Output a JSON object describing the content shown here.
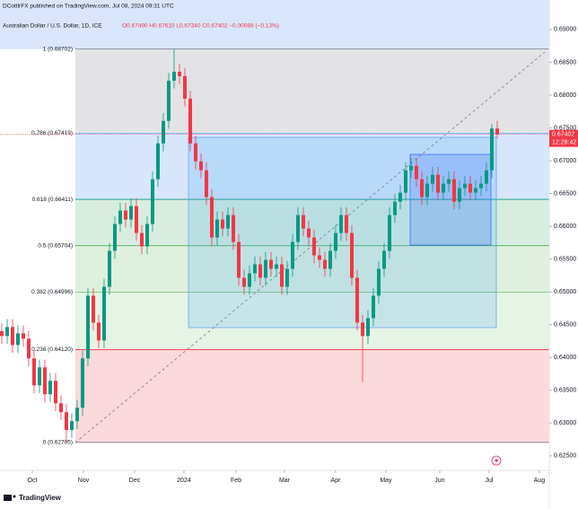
{
  "chart_data": {
    "type": "candlestick",
    "header": {
      "published": "DCottlrFX published on TradingView.com, Jul 08, 2024 09:31 UTC",
      "symbol": "Australian Dollar / U.S. Dollar, 1D, ICE",
      "ohlc": "O0.67490 H0.67610 L0.67340 C0.67402 −0.00088 (−0.13%)"
    },
    "footer": "TradingView",
    "countdown": "12:28:42",
    "up_color": "#089981",
    "down_color": "#f23645",
    "ylim": [
      0.6195,
      0.6945
    ],
    "xlim": [
      -0.33,
      101.67
    ],
    "yticks": [
      {
        "value": 0.625,
        "label": "0.62500"
      },
      {
        "value": 0.63,
        "label": "0.63000"
      },
      {
        "value": 0.635,
        "label": "0.63500"
      },
      {
        "value": 0.64,
        "label": "0.64000"
      },
      {
        "value": 0.645,
        "label": "0.64500"
      },
      {
        "value": 0.65,
        "label": "0.65000"
      },
      {
        "value": 0.655,
        "label": "0.65500"
      },
      {
        "value": 0.66,
        "label": "0.66000"
      },
      {
        "value": 0.665,
        "label": "0.66500"
      },
      {
        "value": 0.67,
        "label": "0.67000"
      },
      {
        "value": 0.675,
        "label": "0.67500"
      },
      {
        "value": 0.68,
        "label": "0.68000"
      },
      {
        "value": 0.685,
        "label": "0.68500"
      },
      {
        "value": 0.69,
        "label": "0.69000"
      }
    ],
    "xticks": [
      {
        "value": 5.67,
        "label": "Oct"
      },
      {
        "value": 15.17,
        "label": "Nov"
      },
      {
        "value": 24.67,
        "label": "Dec"
      },
      {
        "value": 33.83,
        "label": "2024"
      },
      {
        "value": 43.5,
        "label": "Feb"
      },
      {
        "value": 52.5,
        "label": "Mar"
      },
      {
        "value": 62,
        "label": "Apr"
      },
      {
        "value": 71.33,
        "label": "May"
      },
      {
        "value": 81.33,
        "label": "Jun"
      },
      {
        "value": 90.5,
        "label": "Jul"
      },
      {
        "value": 99.83,
        "label": "Aug"
      }
    ],
    "top_band_color": "#d9e6fc",
    "fib_levels": [
      {
        "label": "1 (0.68702)",
        "price": 0.68702,
        "color": "#787b86",
        "band_color": "#e3e3e5"
      },
      {
        "label": "0.786 (0.67419)",
        "price": 0.67419,
        "color": "#64b5f6",
        "band_color": "#d7e6fb"
      },
      {
        "label": "0.618 (0.66411)",
        "price": 0.66411,
        "color": "#089981",
        "band_color": "#d8ede0"
      },
      {
        "label": "0.5 (0.65704)",
        "price": 0.65704,
        "color": "#4caf50",
        "band_color": "#dff0df"
      },
      {
        "label": "0.382 (0.64996)",
        "price": 0.64996,
        "color": "#81c784",
        "band_color": "#e6f4e6"
      },
      {
        "label": "0.236 (0.64120)",
        "price": 0.6412,
        "color": "#f23645",
        "band_color": "#fbd9dc"
      },
      {
        "label": "0 (0.62705)",
        "price": 0.62705,
        "color": "#787b86"
      }
    ],
    "open": [
      0.644,
      0.64327,
      0.64464,
      0.6419,
      0.64368,
      0.64286,
      0.63986,
      0.63576,
      0.63849,
      0.63439,
      0.63644,
      0.63302,
      0.63166,
      0.62893,
      0.63029,
      0.63234,
      0.63986,
      0.64942,
      0.64532,
      0.64259,
      0.65078,
      0.65625,
      0.66035,
      0.6624,
      0.66103,
      0.66308,
      0.65898,
      0.65693,
      0.66035,
      0.66718,
      0.67264,
      0.67606,
      0.6822,
      0.68357,
      0.68289,
      0.67947,
      0.67264,
      0.66991,
      0.66854,
      0.66445,
      0.6583,
      0.66103,
      0.65966,
      0.66171,
      0.65761,
      0.65215,
      0.65078,
      0.65283,
      0.6542,
      0.65215,
      0.65488,
      0.65352,
      0.6542,
      0.65078,
      0.65352,
      0.65761,
      0.66171,
      0.65966,
      0.6583,
      0.65557,
      0.65488,
      0.65352,
      0.65625,
      0.65898,
      0.66171,
      0.65898,
      0.65215,
      0.64532,
      0.64327,
      0.646,
      0.64942,
      0.65352,
      0.65625,
      0.66171,
      0.66376,
      0.66513,
      0.66854,
      0.66923,
      0.66718,
      0.66445,
      0.66649,
      0.66786,
      0.66513,
      0.66649,
      0.66718,
      0.66376,
      0.66581,
      0.66649,
      0.66513,
      0.66581,
      0.66649,
      0.66854,
      0.6749
    ],
    "high": [
      0.6452,
      0.64584,
      0.64584,
      0.64488,
      0.64488,
      0.64406,
      0.64106,
      0.63969,
      0.63969,
      0.63764,
      0.63764,
      0.63422,
      0.63286,
      0.63149,
      0.63354,
      0.64106,
      0.65062,
      0.65062,
      0.64652,
      0.65198,
      0.65745,
      0.66155,
      0.6636,
      0.6636,
      0.66428,
      0.66428,
      0.66018,
      0.66155,
      0.66838,
      0.67384,
      0.67726,
      0.6834,
      0.68702,
      0.68477,
      0.68409,
      0.68067,
      0.67384,
      0.67111,
      0.66974,
      0.66565,
      0.66223,
      0.66223,
      0.66291,
      0.66291,
      0.65881,
      0.65335,
      0.65403,
      0.6554,
      0.6554,
      0.65608,
      0.65608,
      0.6554,
      0.6554,
      0.65472,
      0.65881,
      0.66291,
      0.66291,
      0.66086,
      0.6595,
      0.65677,
      0.65608,
      0.65745,
      0.66018,
      0.66291,
      0.66291,
      0.66018,
      0.65335,
      0.64652,
      0.6472,
      0.65062,
      0.65472,
      0.65745,
      0.66291,
      0.66496,
      0.66633,
      0.66974,
      0.67043,
      0.67043,
      0.66838,
      0.66769,
      0.66906,
      0.66906,
      0.66769,
      0.66838,
      0.66838,
      0.66701,
      0.66769,
      0.66769,
      0.66701,
      0.66769,
      0.66974,
      0.6756,
      0.6761
    ],
    "low": [
      0.64207,
      0.64207,
      0.6407,
      0.6407,
      0.64166,
      0.63866,
      0.63456,
      0.63456,
      0.63319,
      0.63319,
      0.63182,
      0.63046,
      0.62705,
      0.62773,
      0.62909,
      0.63114,
      0.63866,
      0.64412,
      0.64139,
      0.64139,
      0.64958,
      0.65505,
      0.65915,
      0.65983,
      0.65983,
      0.65778,
      0.65573,
      0.65573,
      0.65915,
      0.66598,
      0.67144,
      0.67486,
      0.681,
      0.68169,
      0.67827,
      0.67144,
      0.66871,
      0.66734,
      0.66325,
      0.6571,
      0.6571,
      0.65846,
      0.65846,
      0.65641,
      0.65095,
      0.64958,
      0.64958,
      0.65163,
      0.65095,
      0.65095,
      0.65232,
      0.65232,
      0.64958,
      0.64958,
      0.65232,
      0.65641,
      0.65846,
      0.6571,
      0.65437,
      0.65368,
      0.65232,
      0.65232,
      0.65505,
      0.65778,
      0.65778,
      0.65095,
      0.64412,
      0.63625,
      0.64207,
      0.6448,
      0.64822,
      0.65232,
      0.65505,
      0.66051,
      0.66256,
      0.66393,
      0.66734,
      0.66598,
      0.66325,
      0.66325,
      0.66529,
      0.66393,
      0.66393,
      0.66529,
      0.66256,
      0.66256,
      0.66461,
      0.66393,
      0.66393,
      0.66461,
      0.66529,
      0.66734,
      0.6734
    ],
    "close": [
      0.64327,
      0.64464,
      0.6419,
      0.64368,
      0.64286,
      0.63986,
      0.63576,
      0.63849,
      0.63439,
      0.63644,
      0.63302,
      0.63166,
      0.62893,
      0.63029,
      0.63234,
      0.63986,
      0.64942,
      0.64532,
      0.64259,
      0.65078,
      0.65625,
      0.66035,
      0.6624,
      0.66103,
      0.66308,
      0.65898,
      0.65693,
      0.66035,
      0.66718,
      0.67264,
      0.67606,
      0.6822,
      0.68357,
      0.68289,
      0.67947,
      0.67264,
      0.66991,
      0.66854,
      0.66445,
      0.6583,
      0.66103,
      0.65966,
      0.66171,
      0.65761,
      0.65215,
      0.65078,
      0.65283,
      0.6542,
      0.65215,
      0.65488,
      0.65352,
      0.6542,
      0.65078,
      0.65352,
      0.65761,
      0.66171,
      0.65966,
      0.6583,
      0.65557,
      0.65488,
      0.65352,
      0.65625,
      0.65898,
      0.66171,
      0.65898,
      0.65215,
      0.64532,
      0.64327,
      0.646,
      0.64942,
      0.65352,
      0.65625,
      0.66171,
      0.66376,
      0.66513,
      0.66854,
      0.66923,
      0.66718,
      0.66445,
      0.66649,
      0.66786,
      0.66513,
      0.66649,
      0.66718,
      0.66376,
      0.66581,
      0.66649,
      0.66513,
      0.66581,
      0.66649,
      0.66854,
      0.6749,
      0.67402
    ]
  }
}
